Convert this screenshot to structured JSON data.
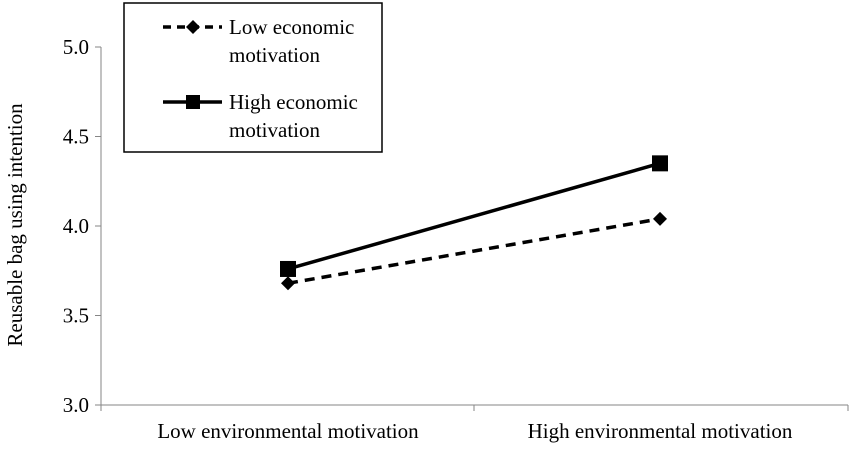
{
  "chart_data": {
    "type": "line",
    "title": "",
    "xlabel": "",
    "ylabel": "Reusable bag using intention",
    "categories": [
      "Low environmental motivation",
      "High environmental motivation"
    ],
    "ylim": [
      3.0,
      5.0
    ],
    "yticks": [
      "3.0",
      "3.5",
      "4.0",
      "4.5",
      "5.0"
    ],
    "grid": false,
    "legend_position": "top-left",
    "series": [
      {
        "name": "Low economic motivation",
        "name_lines": [
          "Low economic",
          "motivation"
        ],
        "values": [
          3.68,
          4.04
        ],
        "line_style": "dashed",
        "marker": "diamond",
        "color": "#000000"
      },
      {
        "name": "High economic motivation",
        "name_lines": [
          "High economic",
          "motivation"
        ],
        "values": [
          3.76,
          4.35
        ],
        "line_style": "solid",
        "marker": "square",
        "color": "#000000"
      }
    ]
  }
}
